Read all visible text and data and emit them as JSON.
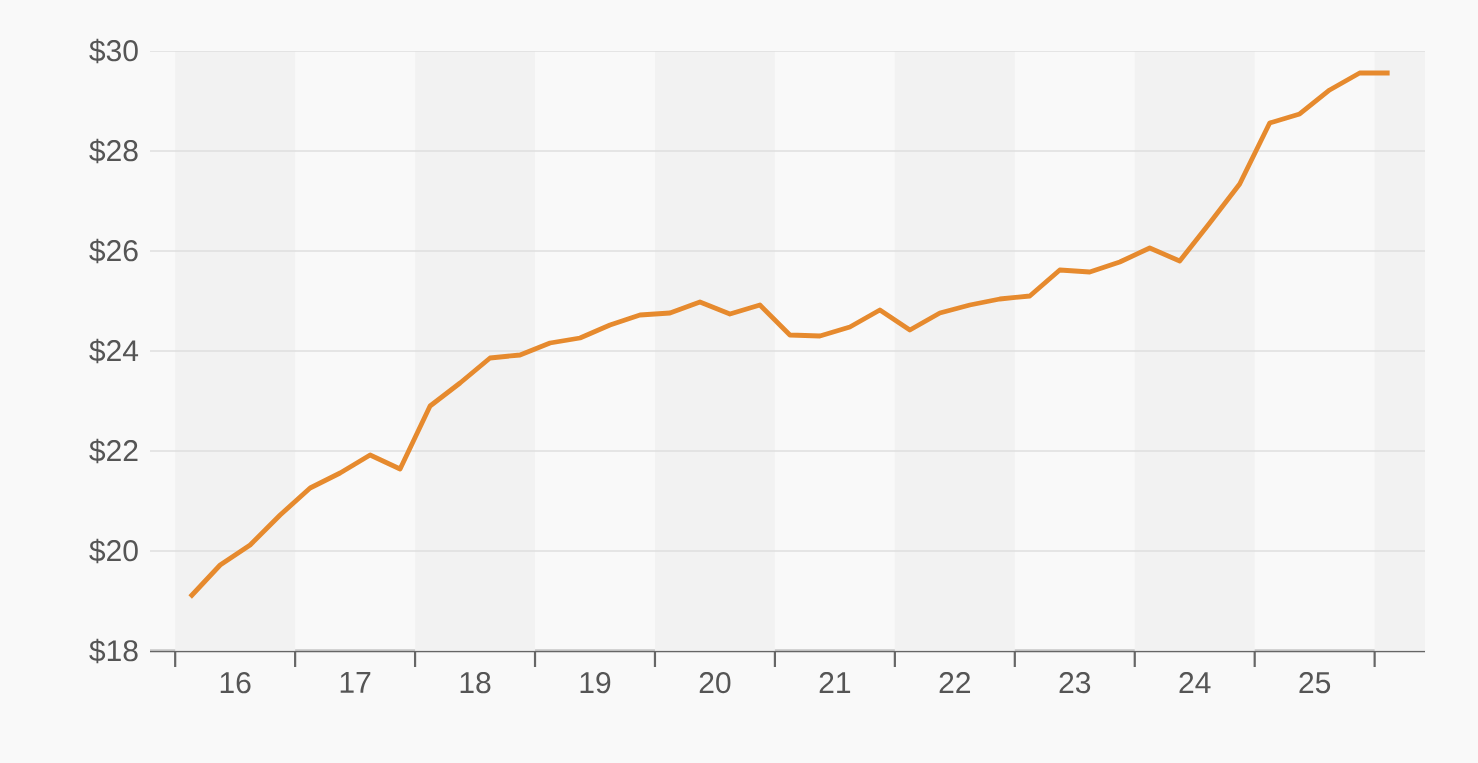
{
  "chart_data": {
    "type": "line",
    "x": [
      15.625,
      15.875,
      16.125,
      16.375,
      16.625,
      16.875,
      17.125,
      17.375,
      17.625,
      17.875,
      18.125,
      18.375,
      18.625,
      18.875,
      19.125,
      19.375,
      19.625,
      19.875,
      20.125,
      20.375,
      20.625,
      20.875,
      21.125,
      21.375,
      21.625,
      21.875,
      22.125,
      22.375,
      22.625,
      22.875,
      23.125,
      23.375,
      23.625,
      23.875,
      24.125,
      24.375,
      24.625,
      24.875,
      25.125,
      25.375,
      25.625
    ],
    "values": [
      19.08,
      19.72,
      20.12,
      20.72,
      21.26,
      21.56,
      21.92,
      21.64,
      22.9,
      23.36,
      23.86,
      23.92,
      24.16,
      24.26,
      24.52,
      24.72,
      24.76,
      24.98,
      24.74,
      24.92,
      24.32,
      24.3,
      24.48,
      24.82,
      24.42,
      24.76,
      24.92,
      25.04,
      25.1,
      25.62,
      25.58,
      25.78,
      26.06,
      25.8,
      26.56,
      27.34,
      28.56,
      28.74,
      29.22,
      29.56,
      29.56
    ],
    "color": "#e68a2e",
    "xlim": [
      15.29,
      25.92
    ],
    "ylim": [
      18,
      30
    ],
    "xticks": [
      {
        "value": 15.5,
        "label": null
      },
      16,
      {
        "value": 16.5,
        "label": null
      },
      17,
      {
        "value": 17.5,
        "label": null
      },
      18,
      {
        "value": 18.5,
        "label": null
      },
      19,
      {
        "value": 19.5,
        "label": null
      },
      20,
      {
        "value": 20.5,
        "label": null
      },
      21,
      {
        "value": 21.5,
        "label": null
      },
      22,
      {
        "value": 22.5,
        "label": null
      },
      23,
      {
        "value": 23.5,
        "label": null
      },
      24,
      {
        "value": 24.5,
        "label": null
      },
      25,
      {
        "value": 25.5,
        "label": null
      }
    ],
    "yticks": [
      {
        "value": 18,
        "label": "$18"
      },
      {
        "value": 20,
        "label": "$20"
      },
      {
        "value": 22,
        "label": "$22"
      },
      {
        "value": 24,
        "label": "$24"
      },
      {
        "value": 26,
        "label": "$26"
      },
      {
        "value": 28,
        "label": "$28"
      },
      {
        "value": 30,
        "label": "$30"
      }
    ],
    "grid": "y",
    "bands": [
      {
        "axis": "x",
        "from": 15.5,
        "to": 16.5,
        "color": "#f2f2f2"
      },
      {
        "axis": "x",
        "from": 17.5,
        "to": 18.5,
        "color": "#f2f2f2"
      },
      {
        "axis": "x",
        "from": 19.5,
        "to": 20.5,
        "color": "#f2f2f2"
      },
      {
        "axis": "x",
        "from": 21.5,
        "to": 22.5,
        "color": "#f2f2f2"
      },
      {
        "axis": "x",
        "from": 23.5,
        "to": 24.5,
        "color": "#f2f2f2"
      },
      {
        "axis": "x",
        "from": 25.5,
        "to": 25.92,
        "color": "#f2f2f2"
      }
    ]
  }
}
